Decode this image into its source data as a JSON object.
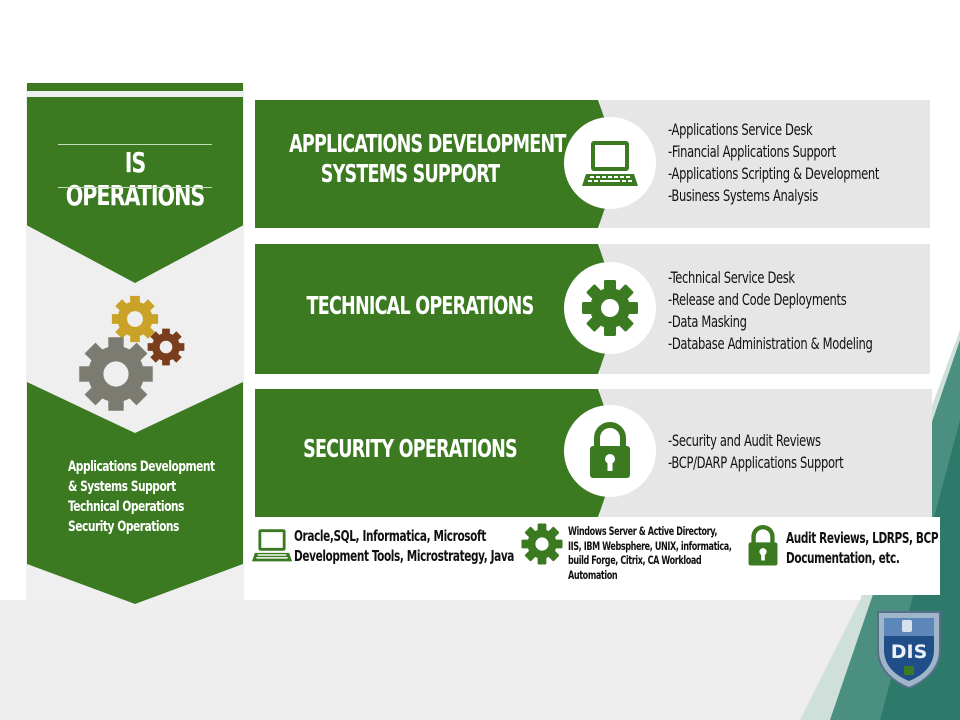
{
  "sidebar": {
    "title": "IS OPERATIONS",
    "items": [
      "Applications Development",
      "& Systems Support",
      "Technical Operations",
      "Security Operations"
    ]
  },
  "rows": [
    {
      "title_lines": [
        "APPLICATIONS DEVELOPMENT &",
        "SYSTEMS SUPPORT"
      ],
      "icon": "laptop-icon",
      "bullets": [
        "-Applications Service Desk",
        "-Financial Applications Support",
        "-Applications Scripting & Development",
        "-Business Systems Analysis"
      ]
    },
    {
      "title_lines": [
        "TECHNICAL OPERATIONS"
      ],
      "icon": "gear-icon",
      "bullets": [
        "-Technical Service Desk",
        "-Release and Code Deployments",
        "-Data Masking",
        "-Database Administration & Modeling"
      ]
    },
    {
      "title_lines": [
        "SECURITY OPERATIONS"
      ],
      "icon": "padlock-icon",
      "bullets": [
        "-Security and Audit Reviews",
        "-BCP/DARP Applications Support"
      ]
    }
  ],
  "tools": [
    {
      "icon": "laptop-icon",
      "lines": [
        "Oracle,SQL, Informatica, Microsoft",
        "Development Tools, Microstrategy, Java"
      ]
    },
    {
      "icon": "gear-icon",
      "lines": [
        "Windows Server & Active Directory,",
        "IIS, IBM Websphere, UNIX, informatica,",
        "build Forge, Citrix, CA Workload",
        "Automation"
      ]
    },
    {
      "icon": "padlock-icon",
      "lines": [
        "Audit Reviews, LDRPS, BCP",
        "Documentation, etc."
      ]
    }
  ],
  "logo": {
    "text": "DIS"
  },
  "colors": {
    "primary_green": "#3c7a22",
    "gray_panel": "#e6e6e6",
    "teal": "#2e7a6a",
    "gear_gold": "#c9a227",
    "gear_brown": "#7a3e1e",
    "gear_gray": "#7b7b72"
  }
}
